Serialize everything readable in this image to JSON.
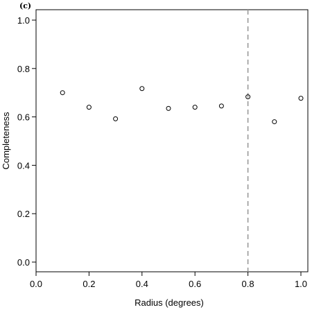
{
  "panel_label": "(c)",
  "chart_data": {
    "type": "scatter",
    "title": "",
    "xlabel": "Radius (degrees)",
    "ylabel": "Completeness",
    "xlim": [
      0.0,
      1.0
    ],
    "ylim": [
      0.0,
      1.0
    ],
    "xticks": [
      "0.0",
      "0.2",
      "0.4",
      "0.6",
      "0.8",
      "1.0"
    ],
    "yticks": [
      "0.0",
      "0.2",
      "0.4",
      "0.6",
      "0.8",
      "1.0"
    ],
    "grid": false,
    "reference_line": {
      "orientation": "vertical",
      "x": 0.8,
      "style": "dashed",
      "color": "#999999"
    },
    "series": [
      {
        "marker": "open-circle",
        "color": "#000000",
        "x": [
          0.1,
          0.2,
          0.3,
          0.4,
          0.5,
          0.6,
          0.7,
          0.8,
          0.9,
          1.0
        ],
        "y": [
          0.7,
          0.64,
          0.592,
          0.717,
          0.635,
          0.64,
          0.645,
          0.683,
          0.58,
          0.677
        ]
      }
    ]
  }
}
